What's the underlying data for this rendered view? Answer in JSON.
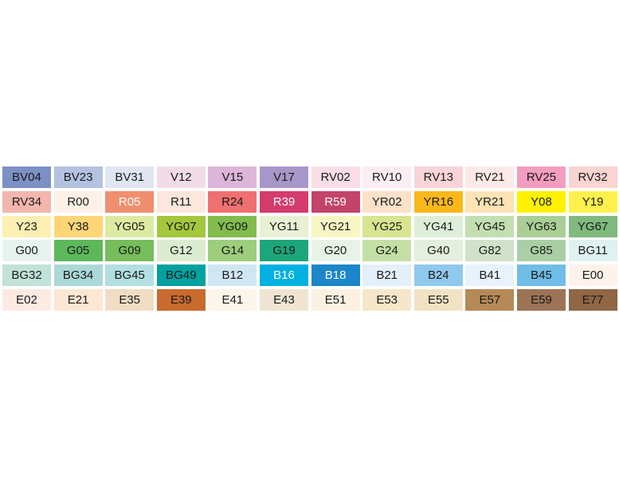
{
  "swatches": {
    "rows": [
      [
        {
          "label": "BV04",
          "color": "#7d90c6"
        },
        {
          "label": "BV23",
          "color": "#b4c2e1"
        },
        {
          "label": "BV31",
          "color": "#e0e5f2"
        },
        {
          "label": "V12",
          "color": "#f2dcea"
        },
        {
          "label": "V15",
          "color": "#ddb5d9"
        },
        {
          "label": "V17",
          "color": "#a996c8"
        },
        {
          "label": "RV02",
          "color": "#fbdee7"
        },
        {
          "label": "RV10",
          "color": "#fdeef2"
        },
        {
          "label": "RV13",
          "color": "#f9d4d9"
        },
        {
          "label": "RV21",
          "color": "#fde9e7"
        },
        {
          "label": "RV25",
          "color": "#f39dc0"
        },
        {
          "label": "RV32",
          "color": "#f9d4d0"
        }
      ],
      [
        {
          "label": "RV34",
          "color": "#f3b6ac"
        },
        {
          "label": "R00",
          "color": "#fef2e8"
        },
        {
          "label": "R05",
          "color": "#f08f70",
          "text": "#ffffff"
        },
        {
          "label": "R11",
          "color": "#fde7dd"
        },
        {
          "label": "R24",
          "color": "#ef7071"
        },
        {
          "label": "R39",
          "color": "#d33c6d",
          "text": "#ffffff"
        },
        {
          "label": "R59",
          "color": "#c3436b",
          "text": "#ffffff"
        },
        {
          "label": "YR02",
          "color": "#fde1c9"
        },
        {
          "label": "YR16",
          "color": "#fbb81b"
        },
        {
          "label": "YR21",
          "color": "#fde3b6"
        },
        {
          "label": "Y08",
          "color": "#fff100"
        },
        {
          "label": "Y19",
          "color": "#fff04d"
        }
      ],
      [
        {
          "label": "Y23",
          "color": "#fcefb1"
        },
        {
          "label": "Y38",
          "color": "#fdd677"
        },
        {
          "label": "YG05",
          "color": "#ddeaa1"
        },
        {
          "label": "YG07",
          "color": "#a3c83d"
        },
        {
          "label": "YG09",
          "color": "#81bc4c"
        },
        {
          "label": "YG11",
          "color": "#e9f1d4"
        },
        {
          "label": "YG21",
          "color": "#f8f7c4"
        },
        {
          "label": "YG25",
          "color": "#d8e48f"
        },
        {
          "label": "YG41",
          "color": "#ddefd9"
        },
        {
          "label": "YG45",
          "color": "#c3dfb2"
        },
        {
          "label": "YG63",
          "color": "#a9ce96"
        },
        {
          "label": "YG67",
          "color": "#80ba7f"
        }
      ],
      [
        {
          "label": "G00",
          "color": "#e7f3ef"
        },
        {
          "label": "G05",
          "color": "#5db85c"
        },
        {
          "label": "G09",
          "color": "#77bd5b"
        },
        {
          "label": "G12",
          "color": "#dcecd1"
        },
        {
          "label": "G14",
          "color": "#9ece7c"
        },
        {
          "label": "G19",
          "color": "#1ca67a"
        },
        {
          "label": "G20",
          "color": "#e8f3e7"
        },
        {
          "label": "G24",
          "color": "#c5e0a6"
        },
        {
          "label": "G40",
          "color": "#e4efdd"
        },
        {
          "label": "G82",
          "color": "#d0e2c9"
        },
        {
          "label": "G85",
          "color": "#aacfa6"
        },
        {
          "label": "BG11",
          "color": "#dff1f0"
        }
      ],
      [
        {
          "label": "BG32",
          "color": "#c0e2d9"
        },
        {
          "label": "BG34",
          "color": "#abd9d7"
        },
        {
          "label": "BG45",
          "color": "#b2dfe1"
        },
        {
          "label": "BG49",
          "color": "#00a19f"
        },
        {
          "label": "B12",
          "color": "#d0e6f2"
        },
        {
          "label": "B16",
          "color": "#00b1e2",
          "text": "#ffffff"
        },
        {
          "label": "B18",
          "color": "#1b86c9",
          "text": "#ffffff"
        },
        {
          "label": "B21",
          "color": "#e3effa"
        },
        {
          "label": "B24",
          "color": "#8fc9ee"
        },
        {
          "label": "B41",
          "color": "#e8f2fc"
        },
        {
          "label": "B45",
          "color": "#70bde7"
        },
        {
          "label": "E00",
          "color": "#fef2eb"
        }
      ],
      [
        {
          "label": "E02",
          "color": "#fdeae3"
        },
        {
          "label": "E21",
          "color": "#fde7d3"
        },
        {
          "label": "E35",
          "color": "#f1ddc3"
        },
        {
          "label": "E39",
          "color": "#c96a2e"
        },
        {
          "label": "E41",
          "color": "#fcf5ea"
        },
        {
          "label": "E43",
          "color": "#efe5d2"
        },
        {
          "label": "E51",
          "color": "#fdf1e1"
        },
        {
          "label": "E53",
          "color": "#f6e7c9"
        },
        {
          "label": "E55",
          "color": "#f2e2c3"
        },
        {
          "label": "E57",
          "color": "#b58a57"
        },
        {
          "label": "E59",
          "color": "#9c7355"
        },
        {
          "label": "E77",
          "color": "#8f6646"
        }
      ]
    ]
  }
}
